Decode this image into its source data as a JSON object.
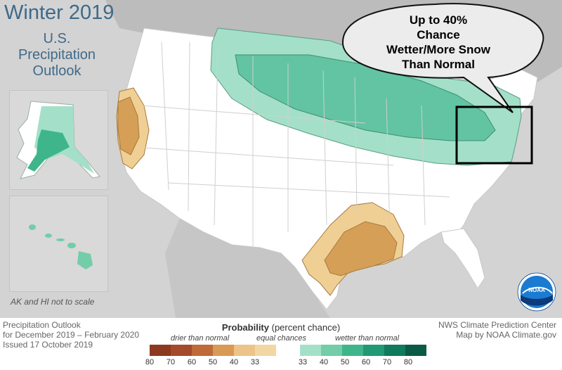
{
  "title": "Winter 2019",
  "subtitle": [
    "U.S.",
    "Precipitation",
    "Outlook"
  ],
  "callout": [
    "Up to 40%",
    "Chance",
    "Wetter/More Snow",
    "Than Normal"
  ],
  "scale_note": "AK and HI not to scale",
  "footer_left": [
    "Precipitation Outlook",
    "for December 2019 – February 2020",
    "Issued 17 October 2019"
  ],
  "footer_right": [
    "NWS Climate Prediction Center",
    "Map by NOAA Climate.gov"
  ],
  "logo_text": "NOAA",
  "legend": {
    "heading_bold": "Probability",
    "heading_rest": " (percent chance)",
    "categories": {
      "drier": "drier than normal",
      "equal": "equal chances",
      "wetter": "wetter than normal"
    },
    "dry_swatches": [
      "#8c3a1f",
      "#a4492a",
      "#c06a3a",
      "#d89a55",
      "#ecc48a",
      "#f3d7a3"
    ],
    "wet_swatches": [
      "#a4e0c9",
      "#72cda8",
      "#3fb58c",
      "#1f9a74",
      "#0f7a5c",
      "#0a5a45"
    ],
    "ticks": [
      "80",
      "70",
      "60",
      "50",
      "40",
      "33",
      "33",
      "40",
      "50",
      "60",
      "70",
      "80"
    ]
  },
  "colors": {
    "background": "#d3d3d3",
    "land": "#ffffff",
    "wet_light": "#a4e0c9",
    "wet_mid": "#62c4a2",
    "dry_light": "#f0cf95",
    "dry_mid": "#d69f57",
    "title": "#3f6a8a"
  }
}
